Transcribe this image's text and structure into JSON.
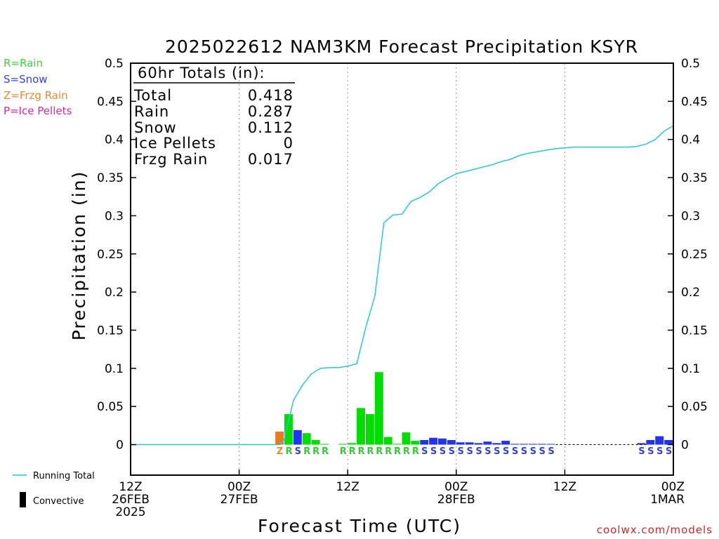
{
  "chart_data": {
    "type": "bar",
    "title": "2025022612 NAM3KM Forecast Precipitation KSYR",
    "xlabel": "Forecast Time (UTC)",
    "ylabel": "Precipitation (in)",
    "ylim": [
      -0.04,
      0.5
    ],
    "xlim_hours": [
      0,
      60
    ],
    "y_ticks": [
      {
        "v": 0,
        "label": "0"
      },
      {
        "v": 0.05,
        "label": "0.05"
      },
      {
        "v": 0.1,
        "label": "0.1"
      },
      {
        "v": 0.15,
        "label": "0.15"
      },
      {
        "v": 0.2,
        "label": "0.2"
      },
      {
        "v": 0.25,
        "label": "0.25"
      },
      {
        "v": 0.3,
        "label": "0.3"
      },
      {
        "v": 0.35,
        "label": "0.35"
      },
      {
        "v": 0.4,
        "label": "0.4"
      },
      {
        "v": 0.45,
        "label": "0.45"
      },
      {
        "v": 0.5,
        "label": "0.5"
      }
    ],
    "x_ticks": [
      {
        "h": 0,
        "lines": [
          "12Z",
          "26FEB",
          "2025"
        ]
      },
      {
        "h": 12,
        "lines": [
          "00Z",
          "27FEB"
        ]
      },
      {
        "h": 24,
        "lines": [
          "12Z"
        ]
      },
      {
        "h": 36,
        "lines": [
          "00Z",
          "28FEB"
        ]
      },
      {
        "h": 48,
        "lines": [
          "12Z"
        ]
      },
      {
        "h": 60,
        "lines": [
          "00Z",
          "1MAR"
        ]
      }
    ],
    "grid": "vertical dotted at 12-hour ticks",
    "ptype_legend": [
      {
        "text": "R=Rain",
        "color": "#33dd33"
      },
      {
        "text": "S=Snow",
        "color": "#3344ee"
      },
      {
        "text": "Z=Frzg Rain",
        "color": "#ee8833"
      },
      {
        "text": "P=Ice Pellets",
        "color": "#ee2299"
      }
    ],
    "totals": {
      "heading": "60hr Totals (in):",
      "rows": [
        {
          "label": "Total",
          "value": "0.418"
        },
        {
          "label": "Rain",
          "value": "0.287"
        },
        {
          "label": "Snow",
          "value": "0.112"
        },
        {
          "label": "Ice Pellets",
          "value": "0"
        },
        {
          "label": "Frzg Rain",
          "value": "0.017"
        }
      ]
    },
    "bottom_legend": {
      "running_total": "Running Total",
      "convective": "Convective"
    },
    "credit": "coolwx.com/models",
    "colors": {
      "rain": "#00dd00",
      "snow": "#2233ee",
      "frzg": "#ee7722",
      "running_total": "#22cccc",
      "rain_label": "#33cc33",
      "snow_label": "#3344cc",
      "frzg_label": "#ee8833"
    },
    "series": [
      {
        "name": "Running Total",
        "type": "line",
        "points": [
          [
            0,
            0
          ],
          [
            16.5,
            0
          ],
          [
            17,
            0.007
          ],
          [
            18,
            0.058
          ],
          [
            19,
            0.078
          ],
          [
            20,
            0.093
          ],
          [
            21,
            0.1
          ],
          [
            22,
            0.101
          ],
          [
            23,
            0.101
          ],
          [
            24,
            0.103
          ],
          [
            25,
            0.106
          ],
          [
            26,
            0.154
          ],
          [
            27,
            0.195
          ],
          [
            28,
            0.291
          ],
          [
            29,
            0.301
          ],
          [
            30,
            0.302
          ],
          [
            31,
            0.319
          ],
          [
            32,
            0.324
          ],
          [
            33,
            0.331
          ],
          [
            34,
            0.342
          ],
          [
            35,
            0.349
          ],
          [
            36,
            0.355
          ],
          [
            37,
            0.358
          ],
          [
            38,
            0.361
          ],
          [
            39,
            0.364
          ],
          [
            40,
            0.367
          ],
          [
            41,
            0.371
          ],
          [
            42,
            0.374
          ],
          [
            43,
            0.379
          ],
          [
            44,
            0.382
          ],
          [
            45,
            0.384
          ],
          [
            46,
            0.386
          ],
          [
            47,
            0.388
          ],
          [
            48,
            0.389
          ],
          [
            49,
            0.39
          ],
          [
            50,
            0.39
          ],
          [
            51,
            0.39
          ],
          [
            52,
            0.39
          ],
          [
            53,
            0.39
          ],
          [
            54,
            0.39
          ],
          [
            55,
            0.39
          ],
          [
            56,
            0.391
          ],
          [
            57,
            0.394
          ],
          [
            58,
            0.4
          ],
          [
            59,
            0.411
          ],
          [
            60,
            0.418
          ]
        ]
      }
    ],
    "bars": [
      {
        "h": 17,
        "value": 0.017,
        "ptype": "Z"
      },
      {
        "h": 18,
        "value": 0.04,
        "ptype": "R"
      },
      {
        "h": 19,
        "value": 0.019,
        "ptype": "S"
      },
      {
        "h": 20,
        "value": 0.015,
        "ptype": "R"
      },
      {
        "h": 21,
        "value": 0.006,
        "ptype": "R"
      },
      {
        "h": 22,
        "value": 0.0005,
        "ptype": "R"
      },
      {
        "h": 24,
        "value": 0.001,
        "ptype": "R"
      },
      {
        "h": 25,
        "value": 0.002,
        "ptype": "R"
      },
      {
        "h": 26,
        "value": 0.048,
        "ptype": "R"
      },
      {
        "h": 27,
        "value": 0.04,
        "ptype": "R"
      },
      {
        "h": 28,
        "value": 0.095,
        "ptype": "R"
      },
      {
        "h": 29,
        "value": 0.01,
        "ptype": "R"
      },
      {
        "h": 30,
        "value": 0.001,
        "ptype": "R"
      },
      {
        "h": 31,
        "value": 0.016,
        "ptype": "R"
      },
      {
        "h": 32,
        "value": 0.005,
        "ptype": "R"
      },
      {
        "h": 33,
        "value": 0.006,
        "ptype": "S"
      },
      {
        "h": 34,
        "value": 0.009,
        "ptype": "S"
      },
      {
        "h": 35,
        "value": 0.008,
        "ptype": "S"
      },
      {
        "h": 36,
        "value": 0.006,
        "ptype": "S"
      },
      {
        "h": 37,
        "value": 0.003,
        "ptype": "S"
      },
      {
        "h": 38,
        "value": 0.003,
        "ptype": "S"
      },
      {
        "h": 39,
        "value": 0.002,
        "ptype": "S"
      },
      {
        "h": 40,
        "value": 0.004,
        "ptype": "S"
      },
      {
        "h": 41,
        "value": 0.002,
        "ptype": "S"
      },
      {
        "h": 42,
        "value": 0.005,
        "ptype": "S"
      },
      {
        "h": 43,
        "value": 0.001,
        "ptype": "S"
      },
      {
        "h": 44,
        "value": 0.001,
        "ptype": "S"
      },
      {
        "h": 45,
        "value": 0.001,
        "ptype": "S"
      },
      {
        "h": 46,
        "value": 0.001,
        "ptype": "S"
      },
      {
        "h": 47,
        "value": 0.0005,
        "ptype": "S"
      },
      {
        "h": 57,
        "value": 0.002,
        "ptype": "S"
      },
      {
        "h": 58,
        "value": 0.006,
        "ptype": "S"
      },
      {
        "h": 59,
        "value": 0.011,
        "ptype": "S"
      },
      {
        "h": 60,
        "value": 0.006,
        "ptype": "S"
      }
    ]
  }
}
